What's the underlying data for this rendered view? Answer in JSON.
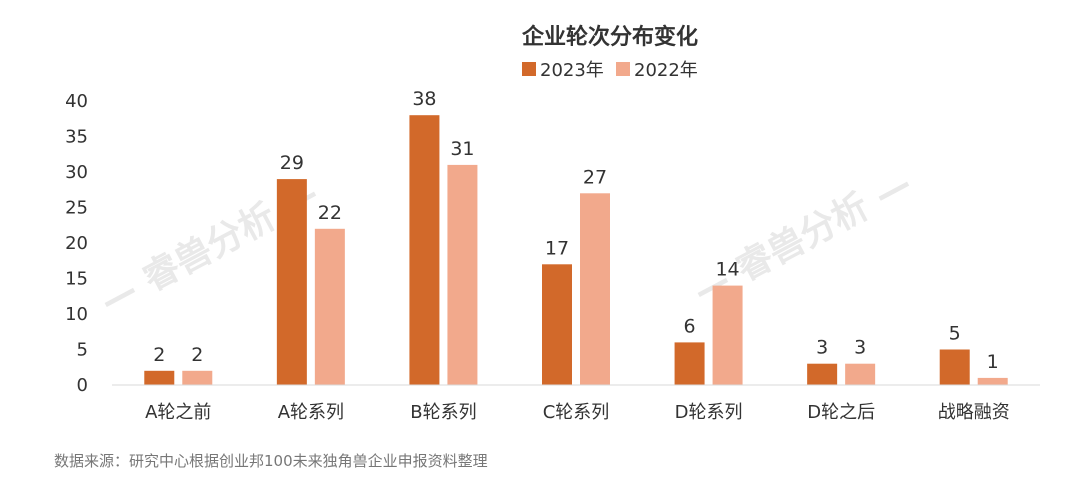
{
  "colors": {
    "series_2023": "#d2692a",
    "series_2022": "#f2a98c",
    "axis": "#d9d9d9",
    "text": "#333333",
    "source": "#777777",
    "watermark": "#e9e9e9"
  },
  "watermark": {
    "text": "睿兽分析"
  },
  "chart_data": {
    "type": "bar",
    "title": "企业轮次分布变化",
    "xlabel": "",
    "ylabel": "",
    "ylim": [
      0,
      40
    ],
    "yticks": [
      0,
      5,
      10,
      15,
      20,
      25,
      30,
      35,
      40
    ],
    "grid": false,
    "legend_position": "top-center",
    "categories": [
      "A轮之前",
      "A轮系列",
      "B轮系列",
      "C轮系列",
      "D轮系列",
      "D轮之后",
      "战略融资"
    ],
    "series": [
      {
        "name": "2023年",
        "values": [
          2,
          29,
          38,
          17,
          6,
          3,
          5
        ]
      },
      {
        "name": "2022年",
        "values": [
          2,
          22,
          31,
          27,
          14,
          3,
          1
        ]
      }
    ],
    "source": "数据来源：研究中心根据创业邦100未来独角兽企业申报资料整理"
  }
}
